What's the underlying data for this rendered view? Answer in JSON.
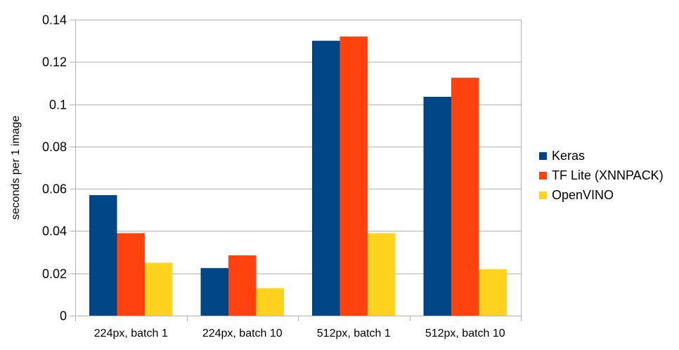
{
  "chart_data": {
    "type": "bar",
    "title": "",
    "xlabel": "",
    "ylabel": "seconds per 1 image",
    "ylim": [
      0,
      0.14
    ],
    "yticks": [
      0,
      0.02,
      0.04,
      0.06,
      0.08,
      0.1,
      0.12,
      0.14
    ],
    "ytick_labels": [
      "0",
      "0.02",
      "0.04",
      "0.06",
      "0.08",
      "0.1",
      "0.12",
      "0.14"
    ],
    "grid": true,
    "legend_position": "right",
    "categories": [
      "224px, batch 1",
      "224px, batch 10",
      "512px, batch 1",
      "512px, batch 10"
    ],
    "series": [
      {
        "name": "Keras",
        "color": "#004586",
        "values": [
          0.057,
          0.0225,
          0.13,
          0.1035
        ]
      },
      {
        "name": "TF Lite (XNNPACK)",
        "color": "#ff420e",
        "values": [
          0.039,
          0.0285,
          0.132,
          0.1125
        ]
      },
      {
        "name": "OpenVINO",
        "color": "#ffd320",
        "values": [
          0.025,
          0.013,
          0.039,
          0.022
        ]
      }
    ]
  }
}
